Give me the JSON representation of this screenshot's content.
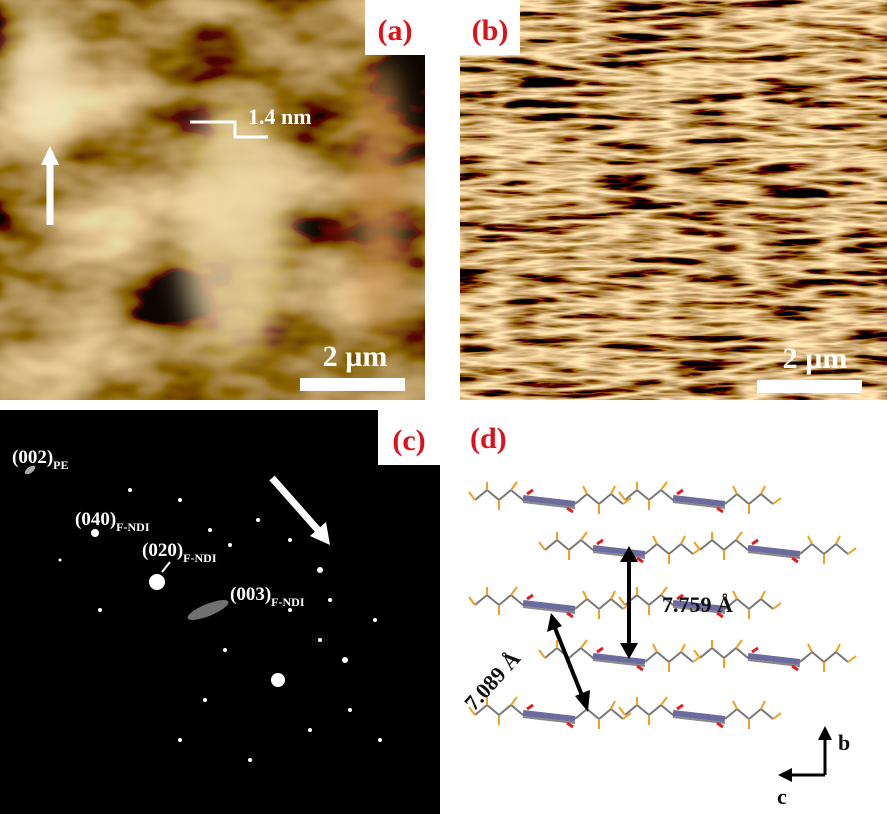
{
  "panels": [
    {
      "label": "(a)",
      "step": "1.4 nm",
      "scale": "2 µm"
    },
    {
      "label": "(b)",
      "scale": "2 µm"
    },
    {
      "label": "(c)",
      "reflections": [
        {
          "text": "(002)",
          "sub": "PE"
        },
        {
          "text": "(040)",
          "sub": "F-NDI"
        },
        {
          "text": "(020)",
          "sub": "F-NDI"
        },
        {
          "text": "(003)",
          "sub": "F-NDI"
        }
      ]
    },
    {
      "label": "(d)",
      "distances": [
        "7.759 Å",
        "7.089 Å"
      ],
      "axes": [
        "b",
        "c"
      ]
    }
  ]
}
